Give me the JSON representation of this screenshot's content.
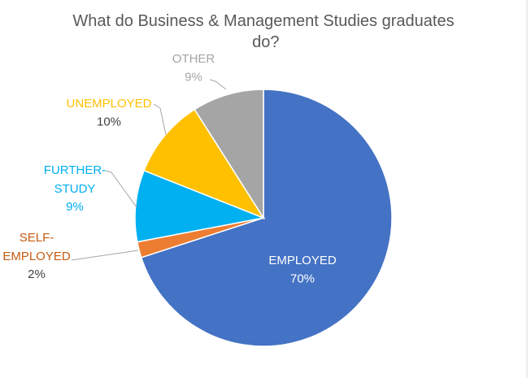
{
  "chart_data": {
    "type": "pie",
    "title": "What do Business & Management Studies graduates do?",
    "categories": [
      "EMPLOYED",
      "SELF-EMPLOYED",
      "FURTHER-STUDY",
      "UNEMPLOYED",
      "OTHER"
    ],
    "values": [
      70,
      2,
      9,
      10,
      9
    ],
    "value_labels": [
      "70%",
      "2%",
      "9%",
      "10%",
      "9%"
    ],
    "colors": [
      "#4472c4",
      "#ed7d31",
      "#00b0f0",
      "#ffc000",
      "#a5a5a5"
    ]
  }
}
